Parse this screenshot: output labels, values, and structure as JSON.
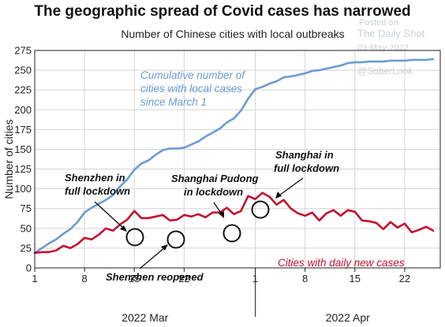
{
  "chart_data": {
    "type": "line",
    "title": "The geographic spread of Covid cases has narrowed",
    "subtitle": "Number of Chinese cities with local outbreaks",
    "ylabel": "Number of cities",
    "ylim": [
      0,
      275
    ],
    "yticks": [
      0,
      25,
      50,
      75,
      100,
      125,
      150,
      175,
      200,
      225,
      250,
      275
    ],
    "x_tick_labels": [
      "1",
      "8",
      "15",
      "22",
      "1",
      "8",
      "15",
      "22"
    ],
    "x_tick_days": [
      1,
      8,
      15,
      22,
      32,
      39,
      46,
      53
    ],
    "month_labels": [
      "2022 Mar",
      "2022 Apr"
    ],
    "month_divider_day": 32,
    "xlim": [
      1,
      58
    ],
    "grid": true,
    "series": [
      {
        "name": "Cumulative number of cities with local cases since March 1",
        "color": "#6b9bd2",
        "x": [
          1,
          2,
          3,
          4,
          5,
          6,
          7,
          8,
          9,
          10,
          11,
          12,
          13,
          14,
          15,
          16,
          17,
          18,
          19,
          20,
          21,
          22,
          23,
          24,
          25,
          26,
          27,
          28,
          29,
          30,
          31,
          32,
          33,
          34,
          35,
          36,
          37,
          38,
          39,
          40,
          41,
          42,
          43,
          44,
          45,
          46,
          47,
          48,
          49,
          50,
          51,
          52,
          53,
          54,
          55,
          56,
          57
        ],
        "values": [
          19,
          25,
          31,
          36,
          43,
          49,
          58,
          70,
          76,
          81,
          86,
          92,
          103,
          112,
          124,
          132,
          136,
          143,
          149,
          151,
          151,
          152,
          156,
          160,
          166,
          171,
          176,
          184,
          189,
          199,
          214,
          226,
          229,
          233,
          236,
          241,
          242,
          244,
          246,
          249,
          250,
          252,
          254,
          256,
          259,
          260,
          260,
          261,
          261,
          261,
          262,
          262,
          262,
          263,
          263,
          263,
          264
        ]
      },
      {
        "name": "Cities with daily new cases",
        "color": "#c3112e",
        "x": [
          1,
          2,
          3,
          4,
          5,
          6,
          7,
          8,
          9,
          10,
          11,
          12,
          13,
          14,
          15,
          16,
          17,
          18,
          19,
          20,
          21,
          22,
          23,
          24,
          25,
          26,
          27,
          28,
          29,
          30,
          31,
          32,
          33,
          34,
          35,
          36,
          37,
          38,
          39,
          40,
          41,
          42,
          43,
          44,
          45,
          46,
          47,
          48,
          49,
          50,
          51,
          52,
          53,
          54,
          55,
          56,
          57
        ],
        "values": [
          19,
          20,
          20,
          22,
          28,
          25,
          30,
          38,
          36,
          42,
          50,
          47,
          55,
          61,
          72,
          63,
          63,
          65,
          67,
          60,
          61,
          67,
          65,
          68,
          64,
          70,
          70,
          76,
          68,
          72,
          91,
          87,
          95,
          90,
          80,
          86,
          75,
          69,
          66,
          70,
          60,
          69,
          73,
          66,
          73,
          71,
          60,
          59,
          57,
          49,
          58,
          51,
          56,
          45,
          48,
          52,
          47
        ]
      }
    ],
    "annotations": {
      "cumulative_label": [
        "Cumulative number of",
        "cities with local cases",
        "since March 1"
      ],
      "daily_label": "Cities with daily new cases",
      "shenzhen_lockdown": [
        "Shenzhen in",
        "full lockdown"
      ],
      "shenzhen_reopened": "Shenzhen reopened",
      "pudong_lockdown": [
        "Shanghai Pudong",
        "in lockdown"
      ],
      "shanghai_lockdown": [
        "Shanghai in",
        "full lockdown"
      ]
    },
    "watermark": {
      "posted": "Posted on",
      "site": "The Daily Shot",
      "date": "03-May-2022",
      "handle": "@SoberLook"
    }
  }
}
